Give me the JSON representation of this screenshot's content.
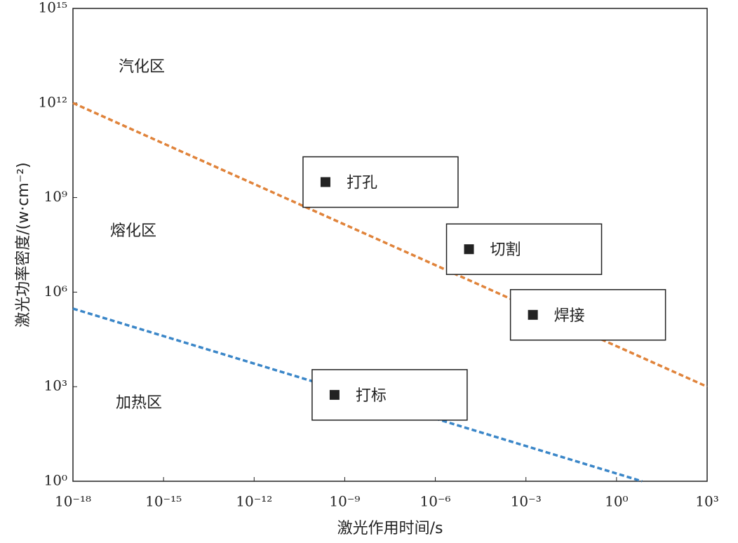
{
  "chart_data": {
    "type": "line",
    "x_label": "激光作用时间/s",
    "y_label": "激光功率密度/(w·cm⁻²)",
    "x_log": true,
    "y_log": true,
    "xlim": [
      1e-18,
      1000
    ],
    "ylim": [
      1,
      1000000000000000.0
    ],
    "xticks": [
      {
        "value": 1e-18,
        "label": "10⁻¹⁸"
      },
      {
        "value": 1e-15,
        "label": "10⁻¹⁵"
      },
      {
        "value": 1e-12,
        "label": "10⁻¹²"
      },
      {
        "value": 1e-09,
        "label": "10⁻⁹"
      },
      {
        "value": 1e-06,
        "label": "10⁻⁶"
      },
      {
        "value": 0.001,
        "label": "10⁻³"
      },
      {
        "value": 1,
        "label": "10⁰"
      },
      {
        "value": 1000,
        "label": "10³"
      }
    ],
    "yticks": [
      {
        "value": 1,
        "label": "10⁰"
      },
      {
        "value": 1000,
        "label": "10³"
      },
      {
        "value": 1000000,
        "label": "10⁶"
      },
      {
        "value": 1000000000,
        "label": "10⁹"
      },
      {
        "value": 1000000000000,
        "label": "10¹²"
      },
      {
        "value": 1000000000000000.0,
        "label": "10¹⁵"
      }
    ],
    "series": [
      {
        "color": "#e0833a",
        "x": [
          1e-18,
          1000
        ],
        "values": [
          1000000000000.0,
          1000
        ]
      },
      {
        "color": "#3a86c8",
        "x": [
          1e-18,
          7
        ],
        "values": [
          300000,
          1
        ]
      }
    ],
    "points": {
      "color": "#222222",
      "labels": [
        "打孔",
        "切割",
        "焊接",
        "打标"
      ],
      "x": [
        2.3e-10,
        1.3e-05,
        0.0017,
        4.6e-10
      ],
      "values": [
        3100000000,
        23000000,
        190000,
        550
      ]
    },
    "annotations": [
      "汽化区",
      "熔化区",
      "加热区"
    ]
  }
}
